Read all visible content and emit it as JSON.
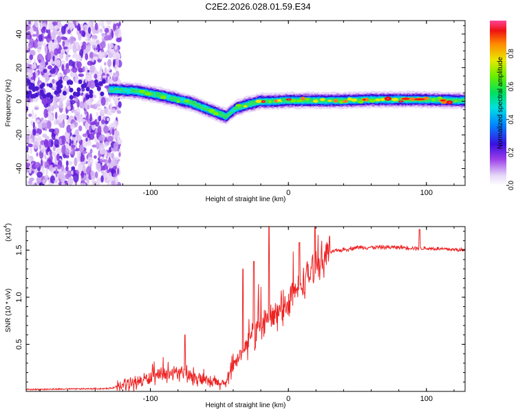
{
  "title": "C2E2.2026.028.01.59.E34",
  "chart_data": [
    {
      "type": "heatmap",
      "name": "spectrogram",
      "xlabel": "Height of straight line (km)",
      "ylabel": "Frequency (Hz)",
      "xlim": [
        -190,
        128
      ],
      "ylim": [
        -50,
        48
      ],
      "xticks": [
        -100,
        0,
        100
      ],
      "yticks": [
        -40,
        -20,
        0,
        20,
        40
      ],
      "colorbar": {
        "label": "Normalized spectral amplitude",
        "range": [
          0,
          1
        ],
        "ticks": [
          0.0,
          0.2,
          0.4,
          0.6,
          0.8
        ]
      },
      "ridge": {
        "x": [
          -130,
          -110,
          -90,
          -70,
          -55,
          -45,
          -38,
          -30,
          -20,
          -10,
          0,
          20,
          40,
          60,
          80,
          100,
          120,
          128
        ],
        "y": [
          7,
          6,
          3,
          -1,
          -6,
          -9,
          -4,
          -2,
          0,
          0,
          0.5,
          0.5,
          0.5,
          1,
          1,
          1,
          0.5,
          0.5
        ]
      }
    },
    {
      "type": "line",
      "name": "snr",
      "xlabel": "Height of straight line (km)",
      "ylabel": "SNR (10 * v/v)",
      "yscale_note": "(x10",
      "yscale_exp": "4",
      "xlim": [
        -190,
        128
      ],
      "ylim": [
        0,
        1.75
      ],
      "xticks": [
        -100,
        0,
        100
      ],
      "yticks": [
        0.5,
        1.0,
        1.5
      ],
      "ytick_labels": [
        "0.5",
        "1.0",
        "1.5"
      ],
      "series_color": "#ee2222",
      "trend": {
        "x": [
          -190,
          -130,
          -120,
          -100,
          -80,
          -60,
          -45,
          -35,
          -25,
          -15,
          -5,
          0,
          10,
          20,
          30,
          50,
          80,
          95,
          100,
          128
        ],
        "y": [
          0.02,
          0.03,
          0.06,
          0.14,
          0.2,
          0.1,
          0.08,
          0.4,
          0.6,
          0.75,
          0.85,
          0.95,
          1.15,
          1.35,
          1.48,
          1.53,
          1.53,
          1.52,
          1.52,
          1.5
        ]
      },
      "spikes": [
        {
          "x": -75,
          "y": 0.6
        },
        {
          "x": -33,
          "y": 1.3
        },
        {
          "x": -25,
          "y": 1.38
        },
        {
          "x": -14,
          "y": 1.75
        },
        {
          "x": 8,
          "y": 1.58
        },
        {
          "x": 95,
          "y": 1.72
        }
      ]
    }
  ]
}
